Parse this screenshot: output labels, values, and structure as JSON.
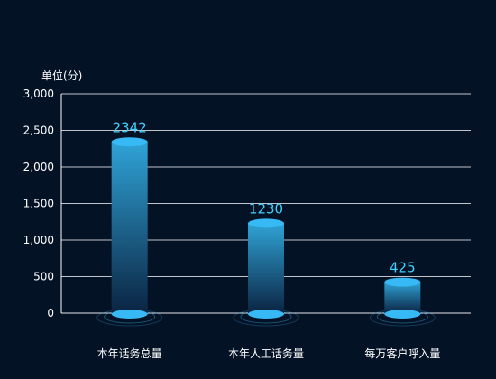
{
  "chart_data": {
    "type": "bar",
    "ylabel": "单位(分)",
    "categories": [
      "本年话务总量",
      "本年人工话务量",
      "每万客户呼入量"
    ],
    "values": [
      2342,
      1230,
      425
    ],
    "ylim": [
      0,
      3000
    ],
    "yticks": [
      0,
      500,
      1000,
      1500,
      2000,
      2500,
      3000
    ],
    "ytick_labels": [
      "0",
      "500",
      "1,000",
      "1,500",
      "2,000",
      "2,500",
      "3,000"
    ],
    "grid": true,
    "colors": {
      "bar_top": "#2fa3d6",
      "bar_bottom": "#0b2442",
      "cap": "#36b9f5",
      "value_label": "#3fd2ff",
      "axis": "#ffffff",
      "text": "#ffffff",
      "background": "#041226"
    }
  }
}
